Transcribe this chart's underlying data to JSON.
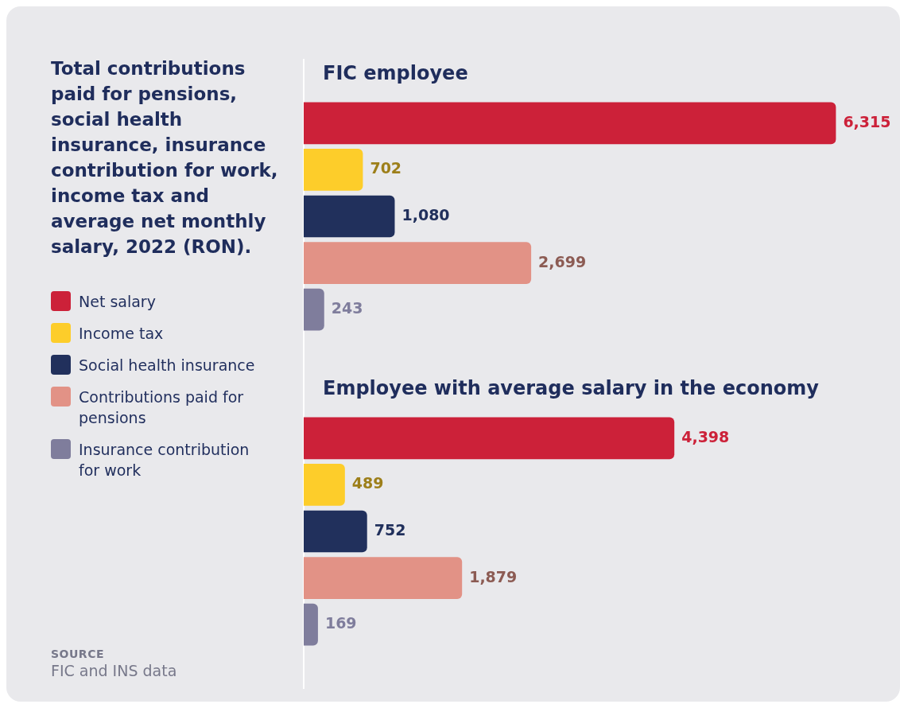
{
  "chart_data": {
    "type": "bar",
    "orientation": "horizontal",
    "title": "Total contributions paid for pensions, social health insurance, insurance contribution for work, income tax and average net monthly salary, 2022 (RON).",
    "categories": [
      "FIC employee",
      "Employee with average salary in the economy"
    ],
    "series": [
      {
        "name": "Net salary",
        "color": "#cc2139",
        "values": [
          6315,
          4398
        ],
        "value_labels": [
          "6,315",
          "4,398"
        ]
      },
      {
        "name": "Income tax",
        "color": "#fdcd2a",
        "values": [
          702,
          489
        ],
        "value_labels": [
          "702",
          "489"
        ]
      },
      {
        "name": "Social health insurance",
        "color": "#21305c",
        "values": [
          1080,
          752
        ],
        "value_labels": [
          "1,080",
          "752"
        ]
      },
      {
        "name": "Contributions paid for pensions",
        "color": "#e29286",
        "values": [
          2699,
          1879
        ],
        "value_labels": [
          "2,699",
          "1,879"
        ]
      },
      {
        "name": "Insurance contribution for work",
        "color": "#7f7d9c",
        "values": [
          243,
          169
        ],
        "value_labels": [
          "243",
          "169"
        ]
      }
    ],
    "legend": "left",
    "tick_labels": "y",
    "annotations": [
      "SOURCE",
      "FIC and INS data"
    ]
  }
}
